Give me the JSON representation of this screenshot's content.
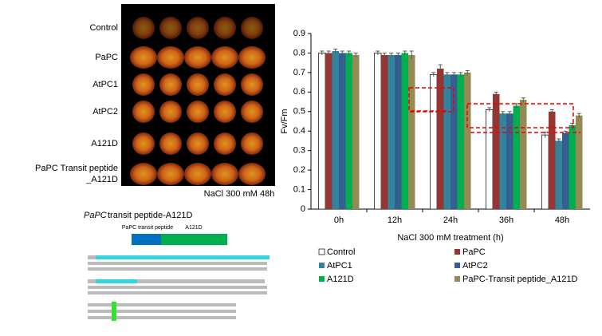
{
  "image_panel": {
    "rows": [
      [
        "Control"
      ],
      [
        "PaPC"
      ],
      [
        "AtPC1"
      ],
      [
        "AtPC2"
      ],
      [
        "A121D"
      ],
      [
        "PaPC Transit peptide",
        "_A121D"
      ]
    ],
    "caption": "NaCl 300 mM 48h"
  },
  "construct": {
    "title_gene": "PaPC",
    "title_rest": "transit peptide-A121D",
    "segments": [
      "PaPC transit peptide",
      "A121D"
    ]
  },
  "chart_data": {
    "type": "bar",
    "ylabel": "Fv/Fm",
    "xlabel": "NaCl 300 mM treatment (h)",
    "categories": [
      "0h",
      "12h",
      "24h",
      "36h",
      "48h"
    ],
    "ylim": [
      0,
      0.9
    ],
    "yticks": [
      0,
      0.1,
      0.2,
      0.3,
      0.4,
      0.5,
      0.6,
      0.7,
      0.8,
      0.9
    ],
    "series": [
      {
        "name": "Control",
        "color": "#ffffff",
        "values": [
          0.8,
          0.8,
          0.69,
          0.51,
          0.38
        ],
        "errors": [
          0.01,
          0.01,
          0.01,
          0.01,
          0.015
        ]
      },
      {
        "name": "PaPC",
        "color": "#943634",
        "values": [
          0.8,
          0.79,
          0.72,
          0.59,
          0.5
        ],
        "errors": [
          0.01,
          0.01,
          0.02,
          0.01,
          0.01
        ]
      },
      {
        "name": "AtPC1",
        "color": "#31849b",
        "values": [
          0.81,
          0.79,
          0.69,
          0.49,
          0.35
        ],
        "errors": [
          0.01,
          0.01,
          0.01,
          0.01,
          0.01
        ]
      },
      {
        "name": "AtPC2",
        "color": "#365f91",
        "values": [
          0.8,
          0.79,
          0.69,
          0.49,
          0.39
        ],
        "errors": [
          0.01,
          0.01,
          0.01,
          0.01,
          0.01
        ]
      },
      {
        "name": "A121D",
        "color": "#00b050",
        "values": [
          0.8,
          0.8,
          0.69,
          0.53,
          0.43
        ],
        "errors": [
          0.01,
          0.01,
          0.01,
          0.01,
          0.01
        ]
      },
      {
        "name": "PaPC-Transit peptide_A121D",
        "color": "#948a54",
        "values": [
          0.79,
          0.79,
          0.7,
          0.56,
          0.48
        ],
        "errors": [
          0.01,
          0.02,
          0.01,
          0.01,
          0.01
        ]
      }
    ]
  }
}
